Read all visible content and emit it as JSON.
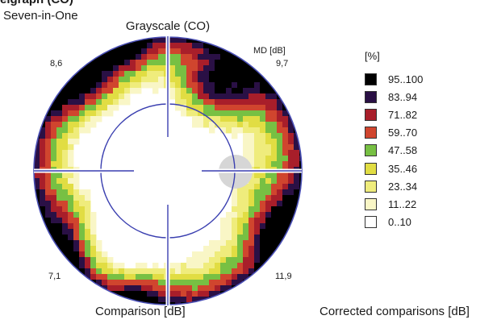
{
  "header": {
    "cut_title": "eigraph (CO)",
    "title": "Seven-in-One"
  },
  "bottom": {
    "left_label": "Comparison [dB]",
    "right_label": "Corrected comparisons [dB]"
  },
  "chart_data": {
    "type": "heatmap",
    "title": "Grayscale (CO)",
    "md_label": "MD [dB]",
    "quadrant_values": {
      "top_left": "8,6",
      "top_right": "9,7",
      "bottom_left": "7,1",
      "bottom_right": "11,9"
    },
    "legend": {
      "unit": "[%]",
      "classes": [
        {
          "range": "95..100",
          "color": "#000000"
        },
        {
          "range": "83..94",
          "color": "#2a1045"
        },
        {
          "range": "71..82",
          "color": "#a81e2a"
        },
        {
          "range": "59..70",
          "color": "#d0452e"
        },
        {
          "range": "47..58",
          "color": "#77c043"
        },
        {
          "range": "35..46",
          "color": "#e1dd43"
        },
        {
          "range": "23..34",
          "color": "#efec7c"
        },
        {
          "range": "11..22",
          "color": "#f9f6c6"
        },
        {
          "range": "0..10",
          "color": "#ffffff"
        }
      ]
    },
    "colors": {
      "rim": "#4a4fb5",
      "axes": "#3a3fb0",
      "blind_spot": "#d6d6d6"
    }
  }
}
